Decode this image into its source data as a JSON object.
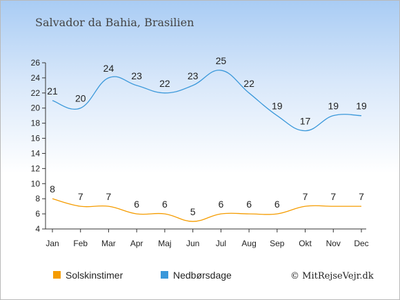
{
  "header": {
    "title": "Salvador da Bahia, Brasilien"
  },
  "footer": {
    "credit": "© MitRejseVejr.dk"
  },
  "chart_data": {
    "type": "line",
    "title": "Salvador da Bahia, Brasilien",
    "xlabel": "",
    "ylabel": "",
    "categories": [
      "Jan",
      "Feb",
      "Mar",
      "Apr",
      "Maj",
      "Jun",
      "Jul",
      "Aug",
      "Sep",
      "Okt",
      "Nov",
      "Dec"
    ],
    "ylim": [
      4,
      26
    ],
    "yticks": [
      4,
      6,
      8,
      10,
      12,
      14,
      16,
      18,
      20,
      22,
      24,
      26
    ],
    "grid": false,
    "legend_position": "bottom",
    "series": [
      {
        "name": "Solskinstimer",
        "color": "#f59c00",
        "values": [
          8,
          7,
          7,
          6,
          6,
          5,
          6,
          6,
          6,
          7,
          7,
          7
        ]
      },
      {
        "name": "Nedbørsdage",
        "color": "#3a98da",
        "values": [
          21,
          20,
          24,
          23,
          22,
          23,
          25,
          22,
          19,
          17,
          19,
          19
        ]
      }
    ]
  }
}
